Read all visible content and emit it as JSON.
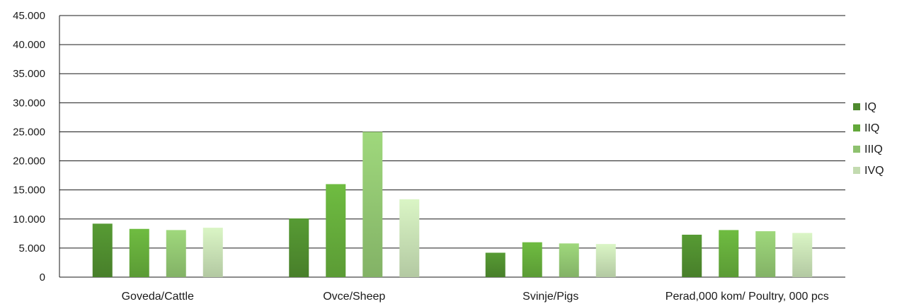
{
  "chart_data": {
    "type": "bar",
    "categories": [
      "Goveda/Cattle",
      "Ovce/Sheep",
      "Svinje/Pigs",
      "Perad,000 kom/ Poultry, 000 pcs"
    ],
    "series": [
      {
        "name": "IQ",
        "color": "#4e8a2e",
        "values": [
          9200,
          10100,
          4200,
          7300
        ]
      },
      {
        "name": "IIQ",
        "color": "#63a83a",
        "values": [
          8300,
          16000,
          6000,
          8100
        ]
      },
      {
        "name": "IIIQ",
        "color": "#8ec16f",
        "values": [
          8100,
          25000,
          5800,
          7900
        ]
      },
      {
        "name": "IVQ",
        "color": "#c3dbb0",
        "values": [
          8500,
          13400,
          5700,
          7600
        ]
      }
    ],
    "ylim": [
      0,
      45000
    ],
    "yticks": [
      0,
      5000,
      10000,
      15000,
      20000,
      25000,
      30000,
      35000,
      40000,
      45000
    ],
    "ytick_labels": [
      "0",
      "5.000",
      "10.000",
      "15.000",
      "20.000",
      "25.000",
      "30.000",
      "35.000",
      "40.000",
      "45.000"
    ],
    "grid": true,
    "legend_position": "right"
  }
}
